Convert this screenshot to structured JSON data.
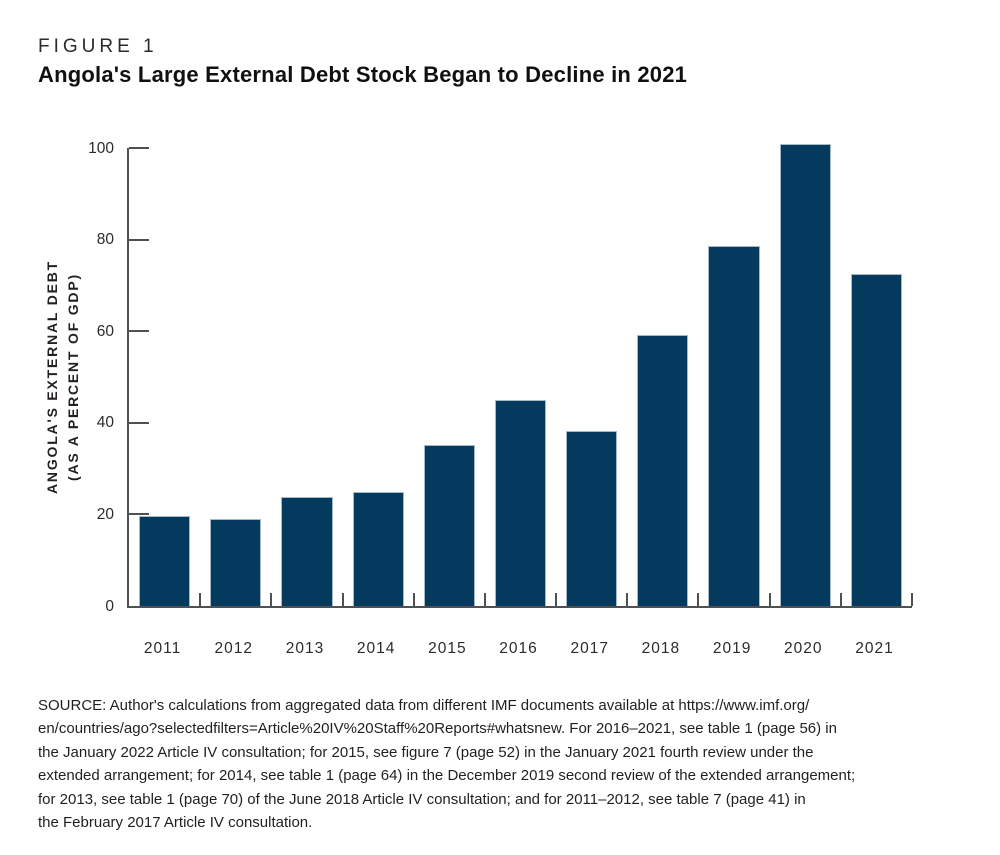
{
  "figure": {
    "label": "FIGURE 1",
    "title": "Angola's Large External Debt Stock Began to Decline in 2021"
  },
  "chart_data": {
    "type": "bar",
    "title": "Angola's Large External Debt Stock Began to Decline in 2021",
    "categories": [
      "2011",
      "2012",
      "2013",
      "2014",
      "2015",
      "2016",
      "2017",
      "2018",
      "2019",
      "2020",
      "2021"
    ],
    "values": [
      19.7,
      19.1,
      23.7,
      25.0,
      35.2,
      45.0,
      38.3,
      59.2,
      78.7,
      100.8,
      72.5
    ],
    "xlabel": "",
    "ylabel": "ANGOLA'S EXTERNAL DEBT (AS A PERCENT OF GDP)",
    "ylabel_line1": "ANGOLA'S EXTERNAL DEBT",
    "ylabel_line2": "(AS A PERCENT OF GDP)",
    "ylim": [
      0,
      100
    ],
    "yticks": [
      0,
      20,
      40,
      60,
      80,
      100
    ],
    "grid": false,
    "legend_position": "none",
    "bar_color": "#043a5e",
    "bar_edge_color": "#a7b9c6",
    "axis_color": "#4f5052"
  },
  "source": {
    "lines": [
      "SOURCE: Author's calculations from aggregated data from different IMF documents available at https://www.imf.org/",
      "en/countries/ago?selectedfilters=Article%20IV%20Staff%20Reports#whatsnew. For 2016–2021, see table 1 (page 56) in",
      "the January 2022 Article IV consultation; for 2015, see figure 7 (page 52) in the January 2021 fourth review under the",
      "extended arrangement; for 2014, see table 1 (page 64) in the December 2019 second review of the extended arrangement;",
      "for 2013, see table 1 (page 70) of the June 2018 Article IV consultation; and for 2011–2012, see table 7 (page 41) in",
      "the February 2017 Article IV consultation."
    ]
  }
}
